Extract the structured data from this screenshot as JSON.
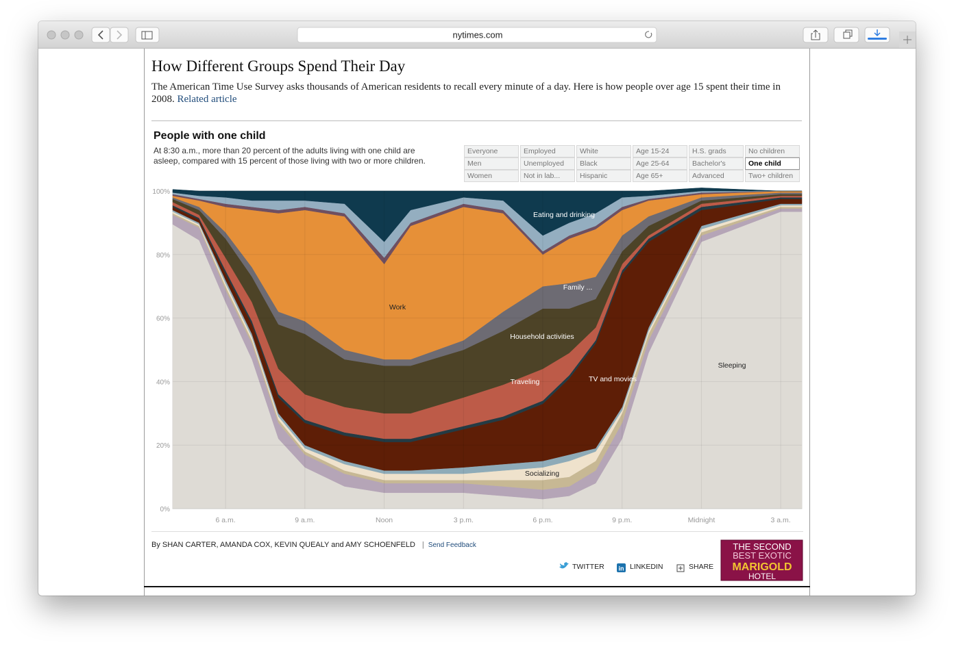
{
  "browser": {
    "url": "nytimes.com"
  },
  "article": {
    "title": "How Different Groups Spend Their Day",
    "description": "The American Time Use Survey asks thousands of American residents to recall every minute of a day. Here is how people over age 15 spent their time in 2008.",
    "related_link": "Related article"
  },
  "filters": {
    "columns": [
      [
        "Everyone",
        "Men",
        "Women"
      ],
      [
        "Employed",
        "Unemployed",
        "Not in lab..."
      ],
      [
        "White",
        "Black",
        "Hispanic"
      ],
      [
        "Age 15-24",
        "Age 25-64",
        "Age 65+"
      ],
      [
        "H.S. grads",
        "Bachelor's",
        "Advanced"
      ],
      [
        "No children",
        "One child",
        "Two+ children"
      ]
    ],
    "selected": [
      5,
      1
    ]
  },
  "chart_data": {
    "type": "stacked_area",
    "title": "People with one child",
    "subtitle": "At 8:30 a.m., more than 20 percent of the adults living with one child are asleep, compared with 15 percent of those living with two or more children.",
    "x": [
      4,
      5,
      6,
      7,
      8,
      9,
      10.5,
      12,
      13,
      15,
      16.5,
      18,
      19,
      20,
      21,
      22,
      24,
      27,
      27.8
    ],
    "xlim": [
      4,
      27.8
    ],
    "xticks": [
      {
        "value": 6,
        "label": "6 a.m."
      },
      {
        "value": 9,
        "label": "9 a.m."
      },
      {
        "value": 12,
        "label": "Noon"
      },
      {
        "value": 15,
        "label": "3 p.m."
      },
      {
        "value": 18,
        "label": "6 p.m."
      },
      {
        "value": 21,
        "label": "9 p.m."
      },
      {
        "value": 24,
        "label": "Midnight"
      },
      {
        "value": 27,
        "label": "3 a.m."
      }
    ],
    "ylim": [
      0,
      100
    ],
    "yticks": [
      {
        "value": 0,
        "label": "0%"
      },
      {
        "value": 20,
        "label": "20%"
      },
      {
        "value": 40,
        "label": "40%"
      },
      {
        "value": 60,
        "label": "60%"
      },
      {
        "value": 80,
        "label": "80%"
      },
      {
        "value": 100,
        "label": "100%"
      }
    ],
    "grid": true,
    "series": [
      {
        "name": "Sleeping",
        "color": "#dedbd5",
        "values": [
          89.5,
          84.5,
          65,
          47,
          22,
          13,
          7,
          5,
          5,
          5,
          4,
          3,
          4,
          8,
          22,
          49,
          84,
          93.5,
          93.5
        ]
      },
      {
        "name": null,
        "color": "#b5a5b7",
        "values": [
          3,
          4,
          4,
          5,
          5,
          4,
          4,
          3,
          3,
          3,
          3,
          3,
          3,
          4,
          5,
          4,
          2,
          1,
          1
        ]
      },
      {
        "name": null,
        "color": "#c7b894",
        "values": [
          0.5,
          0.5,
          1,
          1,
          1,
          1,
          1,
          1,
          1,
          1,
          2,
          3,
          3,
          3,
          3,
          2,
          1,
          0.5,
          0.5
        ]
      },
      {
        "name": "Socializing",
        "color": "#efe2cc",
        "values": [
          0.5,
          0.5,
          1,
          1,
          1,
          1,
          2,
          2,
          2,
          2,
          3,
          4,
          5,
          3,
          1,
          1,
          1,
          0.5,
          0.5
        ]
      },
      {
        "name": null,
        "color": "#8eabb8",
        "values": [
          0.5,
          0.5,
          1,
          1,
          1,
          1,
          1,
          1,
          1,
          2,
          2,
          2,
          2,
          1,
          1,
          1,
          1,
          0.5,
          0.5
        ]
      },
      {
        "name": "TV and movies",
        "color": "#5e1e06",
        "values": [
          1,
          1,
          2,
          3,
          5,
          7,
          8,
          9,
          9,
          12,
          14,
          18,
          24,
          33,
          42,
          27,
          5,
          1.5,
          1.5
        ]
      },
      {
        "name": null,
        "color": "#233b44",
        "values": [
          0.5,
          0.5,
          1,
          1,
          1,
          1,
          1,
          1,
          1,
          1,
          1,
          1,
          1,
          1,
          1,
          1,
          1,
          0.5,
          0.5
        ]
      },
      {
        "name": "Traveling",
        "color": "#bd5b48",
        "values": [
          1,
          1,
          4,
          6,
          8,
          8,
          8,
          8,
          8,
          9,
          10,
          10,
          7,
          4,
          2,
          1,
          1,
          0.5,
          0.5
        ]
      },
      {
        "name": "Household activities",
        "color": "#4d4327",
        "values": [
          1,
          1.5,
          6,
          8,
          14,
          19,
          15,
          15,
          15,
          15,
          17,
          19,
          14,
          9,
          4,
          3,
          1,
          0.5,
          0.5
        ]
      },
      {
        "name": "Family ...",
        "color": "#6d6b73",
        "values": [
          0.5,
          1,
          2,
          3,
          4,
          4,
          3,
          2,
          2,
          3,
          6,
          7,
          8,
          7,
          5,
          3,
          1,
          0.5,
          0.5
        ]
      },
      {
        "name": "Work",
        "color": "#e69038",
        "values": [
          0.5,
          2,
          8,
          18,
          31,
          35,
          42,
          30,
          42,
          42,
          31,
          10,
          14,
          15,
          8,
          5,
          1,
          0.5,
          0.5
        ]
      },
      {
        "name": null,
        "color": "#6e4f61",
        "values": [
          0.5,
          0.5,
          1,
          1,
          1,
          1,
          1,
          2,
          1,
          1,
          1,
          1,
          1,
          1,
          1,
          0.5,
          0.5,
          0,
          0
        ]
      },
      {
        "name": null,
        "color": "#94aec0",
        "values": [
          0.5,
          1,
          2,
          2,
          3,
          2,
          3,
          5,
          4,
          2,
          3,
          5,
          4,
          4,
          3,
          1,
          0.5,
          0,
          0
        ]
      },
      {
        "name": "Eating and drinking",
        "color": "#0f3a4e",
        "values": [
          1,
          1.5,
          2,
          3,
          3,
          3,
          4,
          16,
          6,
          2,
          3,
          14,
          10,
          7,
          2,
          1.5,
          1,
          0,
          0
        ]
      }
    ]
  },
  "byline": {
    "authors": "By SHAN CARTER, AMANDA COX, KEVIN QUEALY and AMY SCHOENFELD",
    "separator": "|",
    "feedback": "Send Feedback"
  },
  "share": [
    "TWITTER",
    "LINKEDIN",
    "SHARE"
  ],
  "ad": {
    "lines": [
      "THE SECOND",
      "BEST EXOTIC",
      "MARIGOLD",
      "HOTEL"
    ]
  }
}
